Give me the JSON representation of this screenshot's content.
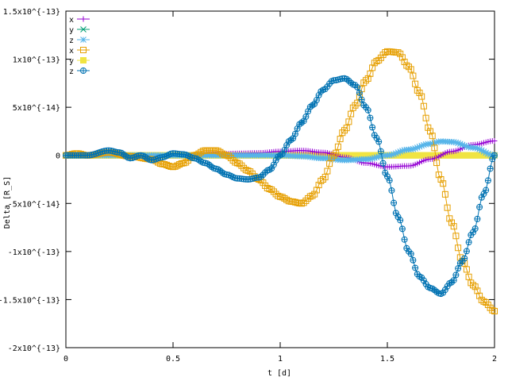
{
  "chart_data": {
    "type": "line",
    "xlabel": "t [d]",
    "ylabel": "Delta [R_S]",
    "xlim": [
      0,
      2
    ],
    "ylim": [
      -2e-13,
      1.5e-13
    ],
    "grid": false,
    "legend_position": "top-left",
    "x_ticks": [
      {
        "value": 0,
        "label": "0"
      },
      {
        "value": 0.5,
        "label": "0.5"
      },
      {
        "value": 1,
        "label": "1"
      },
      {
        "value": 1.5,
        "label": "1.5"
      },
      {
        "value": 2,
        "label": "2"
      }
    ],
    "y_ticks": [
      {
        "value": 1.5e-13,
        "label": "1.5x10^{-13}"
      },
      {
        "value": 1e-13,
        "label": "1x10^{-13}"
      },
      {
        "value": 5e-14,
        "label": "5x10^{-14}"
      },
      {
        "value": 0,
        "label": "0"
      },
      {
        "value": -5e-14,
        "label": "-5x10^{-14}"
      },
      {
        "value": -1e-13,
        "label": "-1x10^{-13}"
      },
      {
        "value": -1.5e-13,
        "label": "-1.5x10^{-13}"
      },
      {
        "value": -2e-13,
        "label": "-2x10^{-13}"
      }
    ],
    "series": [
      {
        "name": "x",
        "color": "#9400d3",
        "marker": "plus",
        "points": [
          [
            0,
            0
          ],
          [
            0.1,
            0
          ],
          [
            0.2,
            1e-15
          ],
          [
            0.3,
            0
          ],
          [
            0.4,
            0
          ],
          [
            0.5,
            0
          ],
          [
            0.6,
            0
          ],
          [
            0.7,
            1e-15
          ],
          [
            0.8,
            2e-15
          ],
          [
            0.9,
            2.5e-15
          ],
          [
            1.0,
            4e-15
          ],
          [
            1.1,
            5e-15
          ],
          [
            1.2,
            3e-15
          ],
          [
            1.3,
            -2e-15
          ],
          [
            1.4,
            -8e-15
          ],
          [
            1.5,
            -1.2e-14
          ],
          [
            1.6,
            -1.1e-14
          ],
          [
            1.7,
            -4e-15
          ],
          [
            1.8,
            4e-15
          ],
          [
            1.9,
            1.1e-14
          ],
          [
            2.0,
            1.5e-14
          ]
        ]
      },
      {
        "name": "y",
        "color": "#009e73",
        "marker": "cross",
        "points": [
          [
            0,
            0
          ],
          [
            0.5,
            0
          ],
          [
            1.0,
            0
          ],
          [
            1.5,
            0
          ],
          [
            2.0,
            0
          ]
        ]
      },
      {
        "name": "z",
        "color": "#56b4e9",
        "marker": "star",
        "points": [
          [
            0,
            0
          ],
          [
            0.2,
            0
          ],
          [
            0.4,
            0
          ],
          [
            0.6,
            0
          ],
          [
            0.8,
            0
          ],
          [
            1.0,
            0
          ],
          [
            1.1,
            -1e-15
          ],
          [
            1.2,
            -3e-15
          ],
          [
            1.3,
            -5e-15
          ],
          [
            1.4,
            -4e-15
          ],
          [
            1.5,
            0
          ],
          [
            1.6,
            6e-15
          ],
          [
            1.7,
            1.2e-14
          ],
          [
            1.75,
            1.45e-14
          ],
          [
            1.8,
            1.4e-14
          ],
          [
            1.9,
            8e-15
          ],
          [
            2.0,
            0
          ]
        ]
      },
      {
        "name": "x",
        "color": "#e69f00",
        "marker": "box",
        "points": [
          [
            0,
            0
          ],
          [
            0.05,
            2e-15
          ],
          [
            0.1,
            0
          ],
          [
            0.2,
            3e-15
          ],
          [
            0.3,
            -1e-15
          ],
          [
            0.4,
            -4e-15
          ],
          [
            0.45,
            -9e-15
          ],
          [
            0.5,
            -1.2e-14
          ],
          [
            0.55,
            -8e-15
          ],
          [
            0.6,
            0
          ],
          [
            0.65,
            5e-15
          ],
          [
            0.7,
            5e-15
          ],
          [
            0.75,
            0
          ],
          [
            0.8,
            -8e-15
          ],
          [
            0.85,
            -1.6e-14
          ],
          [
            0.9,
            -2.5e-14
          ],
          [
            0.95,
            -3.5e-14
          ],
          [
            1.0,
            -4.3e-14
          ],
          [
            1.05,
            -4.8e-14
          ],
          [
            1.1,
            -5e-14
          ],
          [
            1.15,
            -4.2e-14
          ],
          [
            1.2,
            -2.5e-14
          ],
          [
            1.25,
            0
          ],
          [
            1.3,
            2.6e-14
          ],
          [
            1.35,
            5.2e-14
          ],
          [
            1.4,
            7.8e-14
          ],
          [
            1.45,
            9.8e-14
          ],
          [
            1.5,
            1.08e-13
          ],
          [
            1.55,
            1.07e-13
          ],
          [
            1.6,
            9.2e-14
          ],
          [
            1.65,
            6.5e-14
          ],
          [
            1.7,
            2.5e-14
          ],
          [
            1.75,
            -2.5e-14
          ],
          [
            1.8,
            -7e-14
          ],
          [
            1.85,
            -1.1e-13
          ],
          [
            1.9,
            -1.35e-13
          ],
          [
            1.95,
            -1.52e-13
          ],
          [
            2.0,
            -1.62e-13
          ]
        ]
      },
      {
        "name": "y",
        "color": "#f0e442",
        "marker": "filled-box",
        "points": [
          [
            0,
            0
          ],
          [
            0.5,
            0
          ],
          [
            1.0,
            0
          ],
          [
            1.5,
            0
          ],
          [
            2.0,
            0
          ]
        ]
      },
      {
        "name": "z",
        "color": "#0072b2",
        "marker": "circle-plus",
        "points": [
          [
            0,
            0
          ],
          [
            0.1,
            0
          ],
          [
            0.2,
            5e-15
          ],
          [
            0.25,
            3e-15
          ],
          [
            0.3,
            -3e-15
          ],
          [
            0.35,
            0
          ],
          [
            0.4,
            -5e-15
          ],
          [
            0.45,
            -2e-15
          ],
          [
            0.5,
            2e-15
          ],
          [
            0.55,
            1e-15
          ],
          [
            0.6,
            -3e-15
          ],
          [
            0.65,
            -8e-15
          ],
          [
            0.7,
            -1.4e-14
          ],
          [
            0.75,
            -2e-14
          ],
          [
            0.8,
            -2.4e-14
          ],
          [
            0.85,
            -2.5e-14
          ],
          [
            0.9,
            -2.3e-14
          ],
          [
            0.95,
            -1.5e-14
          ],
          [
            1.0,
            0
          ],
          [
            1.05,
            1.6e-14
          ],
          [
            1.1,
            3.4e-14
          ],
          [
            1.15,
            5.2e-14
          ],
          [
            1.2,
            6.8e-14
          ],
          [
            1.25,
            7.8e-14
          ],
          [
            1.3,
            8e-14
          ],
          [
            1.35,
            7.3e-14
          ],
          [
            1.4,
            5e-14
          ],
          [
            1.45,
            1.8e-14
          ],
          [
            1.5,
            -2.2e-14
          ],
          [
            1.55,
            -6.4e-14
          ],
          [
            1.6,
            -1e-13
          ],
          [
            1.65,
            -1.26e-13
          ],
          [
            1.7,
            -1.38e-13
          ],
          [
            1.75,
            -1.44e-13
          ],
          [
            1.8,
            -1.32e-13
          ],
          [
            1.85,
            -1.1e-13
          ],
          [
            1.9,
            -8e-14
          ],
          [
            1.95,
            -4e-14
          ],
          [
            2.0,
            0
          ]
        ]
      }
    ]
  }
}
